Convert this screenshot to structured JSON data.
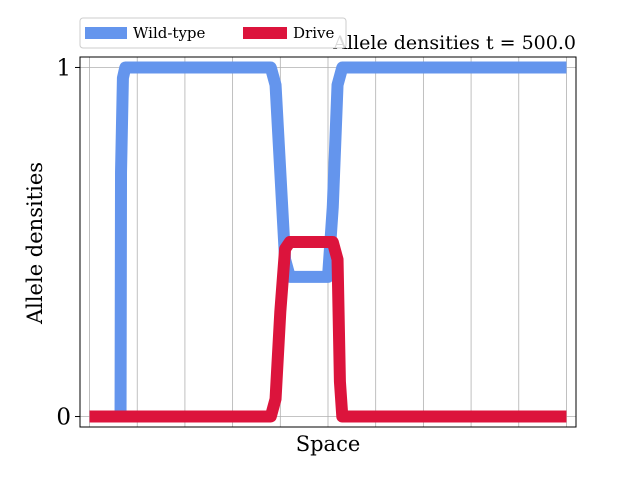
{
  "chart_data": {
    "type": "line",
    "title": "Allele densities t = 500.0",
    "xlabel": "Space",
    "ylabel": "Allele densities",
    "xlim": [
      -0.02,
      1.02
    ],
    "ylim": [
      -0.03,
      1.03
    ],
    "yticks": [
      0,
      1
    ],
    "ytick_labels": [
      "0",
      "1"
    ],
    "grid": true,
    "legend_position": "top-left",
    "series": [
      {
        "name": "Wild-type",
        "color": "#6495ED",
        "x": [
          0.0,
          0.065,
          0.066,
          0.07,
          0.075,
          0.38,
          0.39,
          0.4,
          0.41,
          0.42,
          0.5,
          0.51,
          0.52,
          0.53,
          1.0
        ],
        "y": [
          0.0,
          0.0,
          0.7,
          0.97,
          1.0,
          1.0,
          0.95,
          0.7,
          0.45,
          0.4,
          0.4,
          0.6,
          0.95,
          1.0,
          1.0
        ]
      },
      {
        "name": "Drive",
        "color": "#DC143C",
        "x": [
          0.0,
          0.38,
          0.39,
          0.4,
          0.41,
          0.42,
          0.51,
          0.52,
          0.525,
          0.53,
          1.0
        ],
        "y": [
          0.0,
          0.0,
          0.05,
          0.3,
          0.48,
          0.5,
          0.5,
          0.45,
          0.1,
          0.0,
          0.0
        ]
      }
    ]
  }
}
